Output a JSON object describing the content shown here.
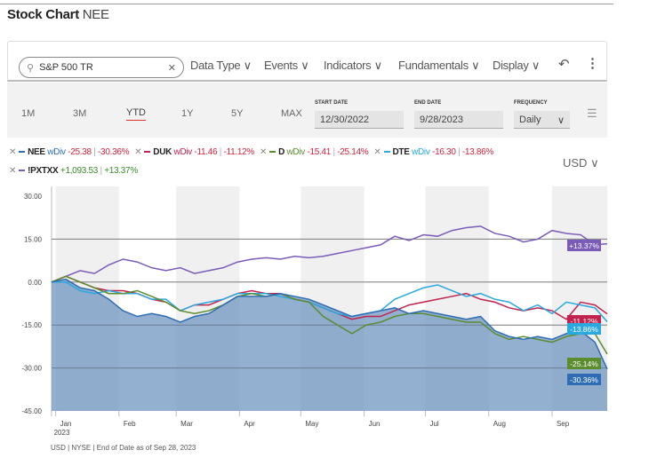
{
  "header": {
    "title": "Stock Chart",
    "ticker": "NEE"
  },
  "toolbar": {
    "search_value": "S&P 500 TR",
    "menus": [
      "Data Type",
      "Events",
      "Indicators",
      "Fundamentals",
      "Display"
    ]
  },
  "ranges": {
    "buttons": [
      "1M",
      "3M",
      "YTD",
      "1Y",
      "5Y",
      "MAX"
    ],
    "selected": "YTD"
  },
  "dates": {
    "start_label": "START DATE",
    "start_value": "12/30/2022",
    "end_label": "END DATE",
    "end_value": "9/28/2023",
    "frequency_label": "FREQUENCY",
    "frequency_value": "Daily"
  },
  "legend": [
    {
      "ticker": "NEE",
      "type": "wDiv",
      "change": "-25.38",
      "pct": "-30.36%",
      "color": "#2e6db4"
    },
    {
      "ticker": "DUK",
      "type": "wDiv",
      "change": "-11.46",
      "pct": "-11.12%",
      "color": "#c2234e"
    },
    {
      "ticker": "D",
      "type": "wDiv",
      "change": "-15.41",
      "pct": "-25.14%",
      "color": "#5b8c2e"
    },
    {
      "ticker": "DTE",
      "type": "wDiv",
      "change": "-16.30",
      "pct": "-13.86%",
      "color": "#2aa8e0"
    },
    {
      "ticker": "!PXTXX",
      "type": "",
      "change": "+1,093.53",
      "pct": "+13.37%",
      "color": "#7a5cb8"
    }
  ],
  "currency": "USD",
  "footer": "USD | NYSE | End of Date as of Sep 28, 2023",
  "chart_data": {
    "type": "line",
    "ylim": [
      -45,
      30
    ],
    "yticks": [
      "30.00",
      "15.00",
      "0.00",
      "-15.00",
      "-30.00",
      "-45.00"
    ],
    "xticks": [
      "Jan",
      "Feb",
      "Mar",
      "Apr",
      "May",
      "Jun",
      "Jul",
      "Aug",
      "Sep"
    ],
    "xtick_year": "2023",
    "x": [
      "2022-12-30",
      "2023-01-06",
      "2023-01-13",
      "2023-01-20",
      "2023-01-27",
      "2023-02-03",
      "2023-02-10",
      "2023-02-17",
      "2023-02-24",
      "2023-03-03",
      "2023-03-10",
      "2023-03-17",
      "2023-03-24",
      "2023-03-31",
      "2023-04-07",
      "2023-04-14",
      "2023-04-21",
      "2023-04-28",
      "2023-05-05",
      "2023-05-12",
      "2023-05-19",
      "2023-05-26",
      "2023-06-02",
      "2023-06-09",
      "2023-06-16",
      "2023-06-23",
      "2023-06-30",
      "2023-07-07",
      "2023-07-14",
      "2023-07-21",
      "2023-07-28",
      "2023-08-04",
      "2023-08-11",
      "2023-08-18",
      "2023-08-25",
      "2023-09-01",
      "2023-09-08",
      "2023-09-15",
      "2023-09-22",
      "2023-09-28"
    ],
    "series": [
      {
        "name": "!PXTXX",
        "end_label": "+13.37%",
        "values": [
          0,
          2,
          4,
          3,
          6,
          8,
          7,
          5,
          4,
          5,
          3,
          4,
          5,
          7,
          8,
          8.5,
          8,
          9,
          8.5,
          9,
          10,
          11,
          12,
          13,
          16,
          14.5,
          16.5,
          16,
          18,
          19,
          19.5,
          17,
          16,
          14,
          15,
          18,
          17,
          16.5,
          13,
          13.37
        ]
      },
      {
        "name": "DUK",
        "end_label": "-11.12%",
        "values": [
          0,
          2,
          0,
          -2,
          -3,
          -3,
          -4,
          -6,
          -7,
          -10,
          -8,
          -8,
          -6,
          -4,
          -3,
          -4,
          -4,
          -6,
          -7,
          -9,
          -11,
          -13,
          -12,
          -12,
          -10,
          -8,
          -7,
          -6,
          -5,
          -4,
          -6,
          -7,
          -9,
          -10,
          -9,
          -10,
          -13,
          -7,
          -8,
          -11.12
        ]
      },
      {
        "name": "DTE",
        "end_label": "-13.86%",
        "values": [
          0,
          0,
          -3,
          -4,
          -3,
          -4,
          -4,
          -6,
          -6,
          -10,
          -8,
          -7,
          -6,
          -4,
          -4,
          -4,
          -5,
          -6,
          -7,
          -9,
          -11,
          -12,
          -11,
          -10,
          -6,
          -4,
          -2,
          -1,
          -3,
          -5,
          -4,
          -6,
          -7,
          -10,
          -8,
          -11,
          -7,
          -8,
          -9,
          -13.86
        ]
      },
      {
        "name": "D",
        "end_label": "-25.14%",
        "values": [
          0,
          2,
          0,
          -2,
          -4,
          -4,
          -3,
          -5,
          -7,
          -10,
          -11,
          -10,
          -8,
          -5,
          -4,
          -5,
          -4,
          -6,
          -7,
          -12,
          -15,
          -18,
          -15,
          -14,
          -12,
          -11,
          -11,
          -12,
          -13,
          -14,
          -14,
          -18,
          -20,
          -19,
          -20,
          -21,
          -19,
          -18,
          -18,
          -25.14
        ]
      },
      {
        "name": "NEE",
        "end_label": "-30.36%",
        "values": [
          0,
          1,
          -2,
          -3,
          -6,
          -10,
          -12,
          -11,
          -12,
          -14,
          -12,
          -11,
          -8,
          -5,
          -5,
          -5,
          -4,
          -5,
          -6,
          -8,
          -10,
          -12,
          -11,
          -10,
          -9,
          -11,
          -10,
          -11,
          -12,
          -13,
          -12,
          -17,
          -19,
          -20,
          -19,
          -20,
          -18,
          -17,
          -21,
          -30.36
        ]
      }
    ]
  }
}
